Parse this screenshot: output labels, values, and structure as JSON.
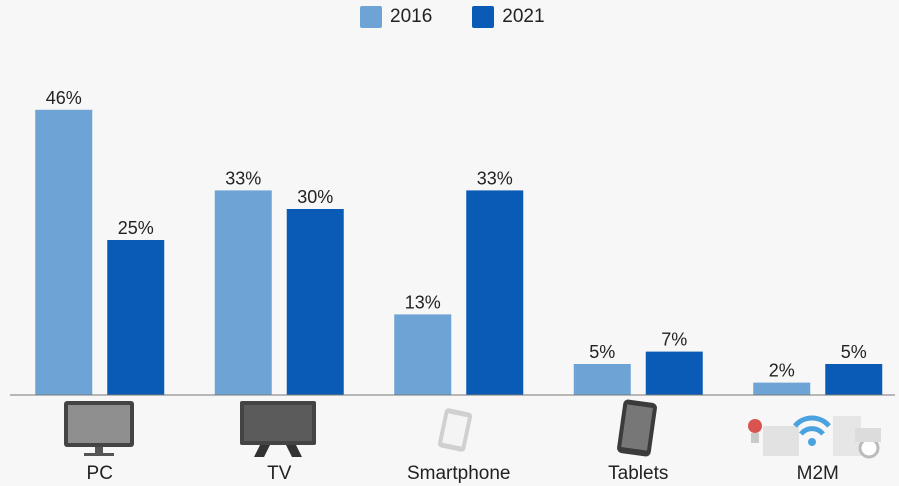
{
  "chart_data": {
    "type": "bar",
    "categories": [
      "PC",
      "TV",
      "Smartphone",
      "Tablets",
      "M2M"
    ],
    "series": [
      {
        "name": "2016",
        "values": [
          46,
          33,
          13,
          5,
          2
        ],
        "color": "#6ea3d6"
      },
      {
        "name": "2021",
        "values": [
          25,
          30,
          33,
          7,
          5
        ],
        "color": "#0a5bb5"
      }
    ],
    "value_labels": [
      [
        "46%",
        "33%",
        "13%",
        "5%",
        "2%"
      ],
      [
        "25%",
        "30%",
        "33%",
        "7%",
        "5%"
      ]
    ],
    "ylim": [
      0,
      50
    ],
    "grid": false,
    "legend": "top-center",
    "icons": [
      "monitor-icon",
      "television-icon",
      "smartphone-icon",
      "tablet-icon",
      "m2m-devices-icon"
    ]
  }
}
